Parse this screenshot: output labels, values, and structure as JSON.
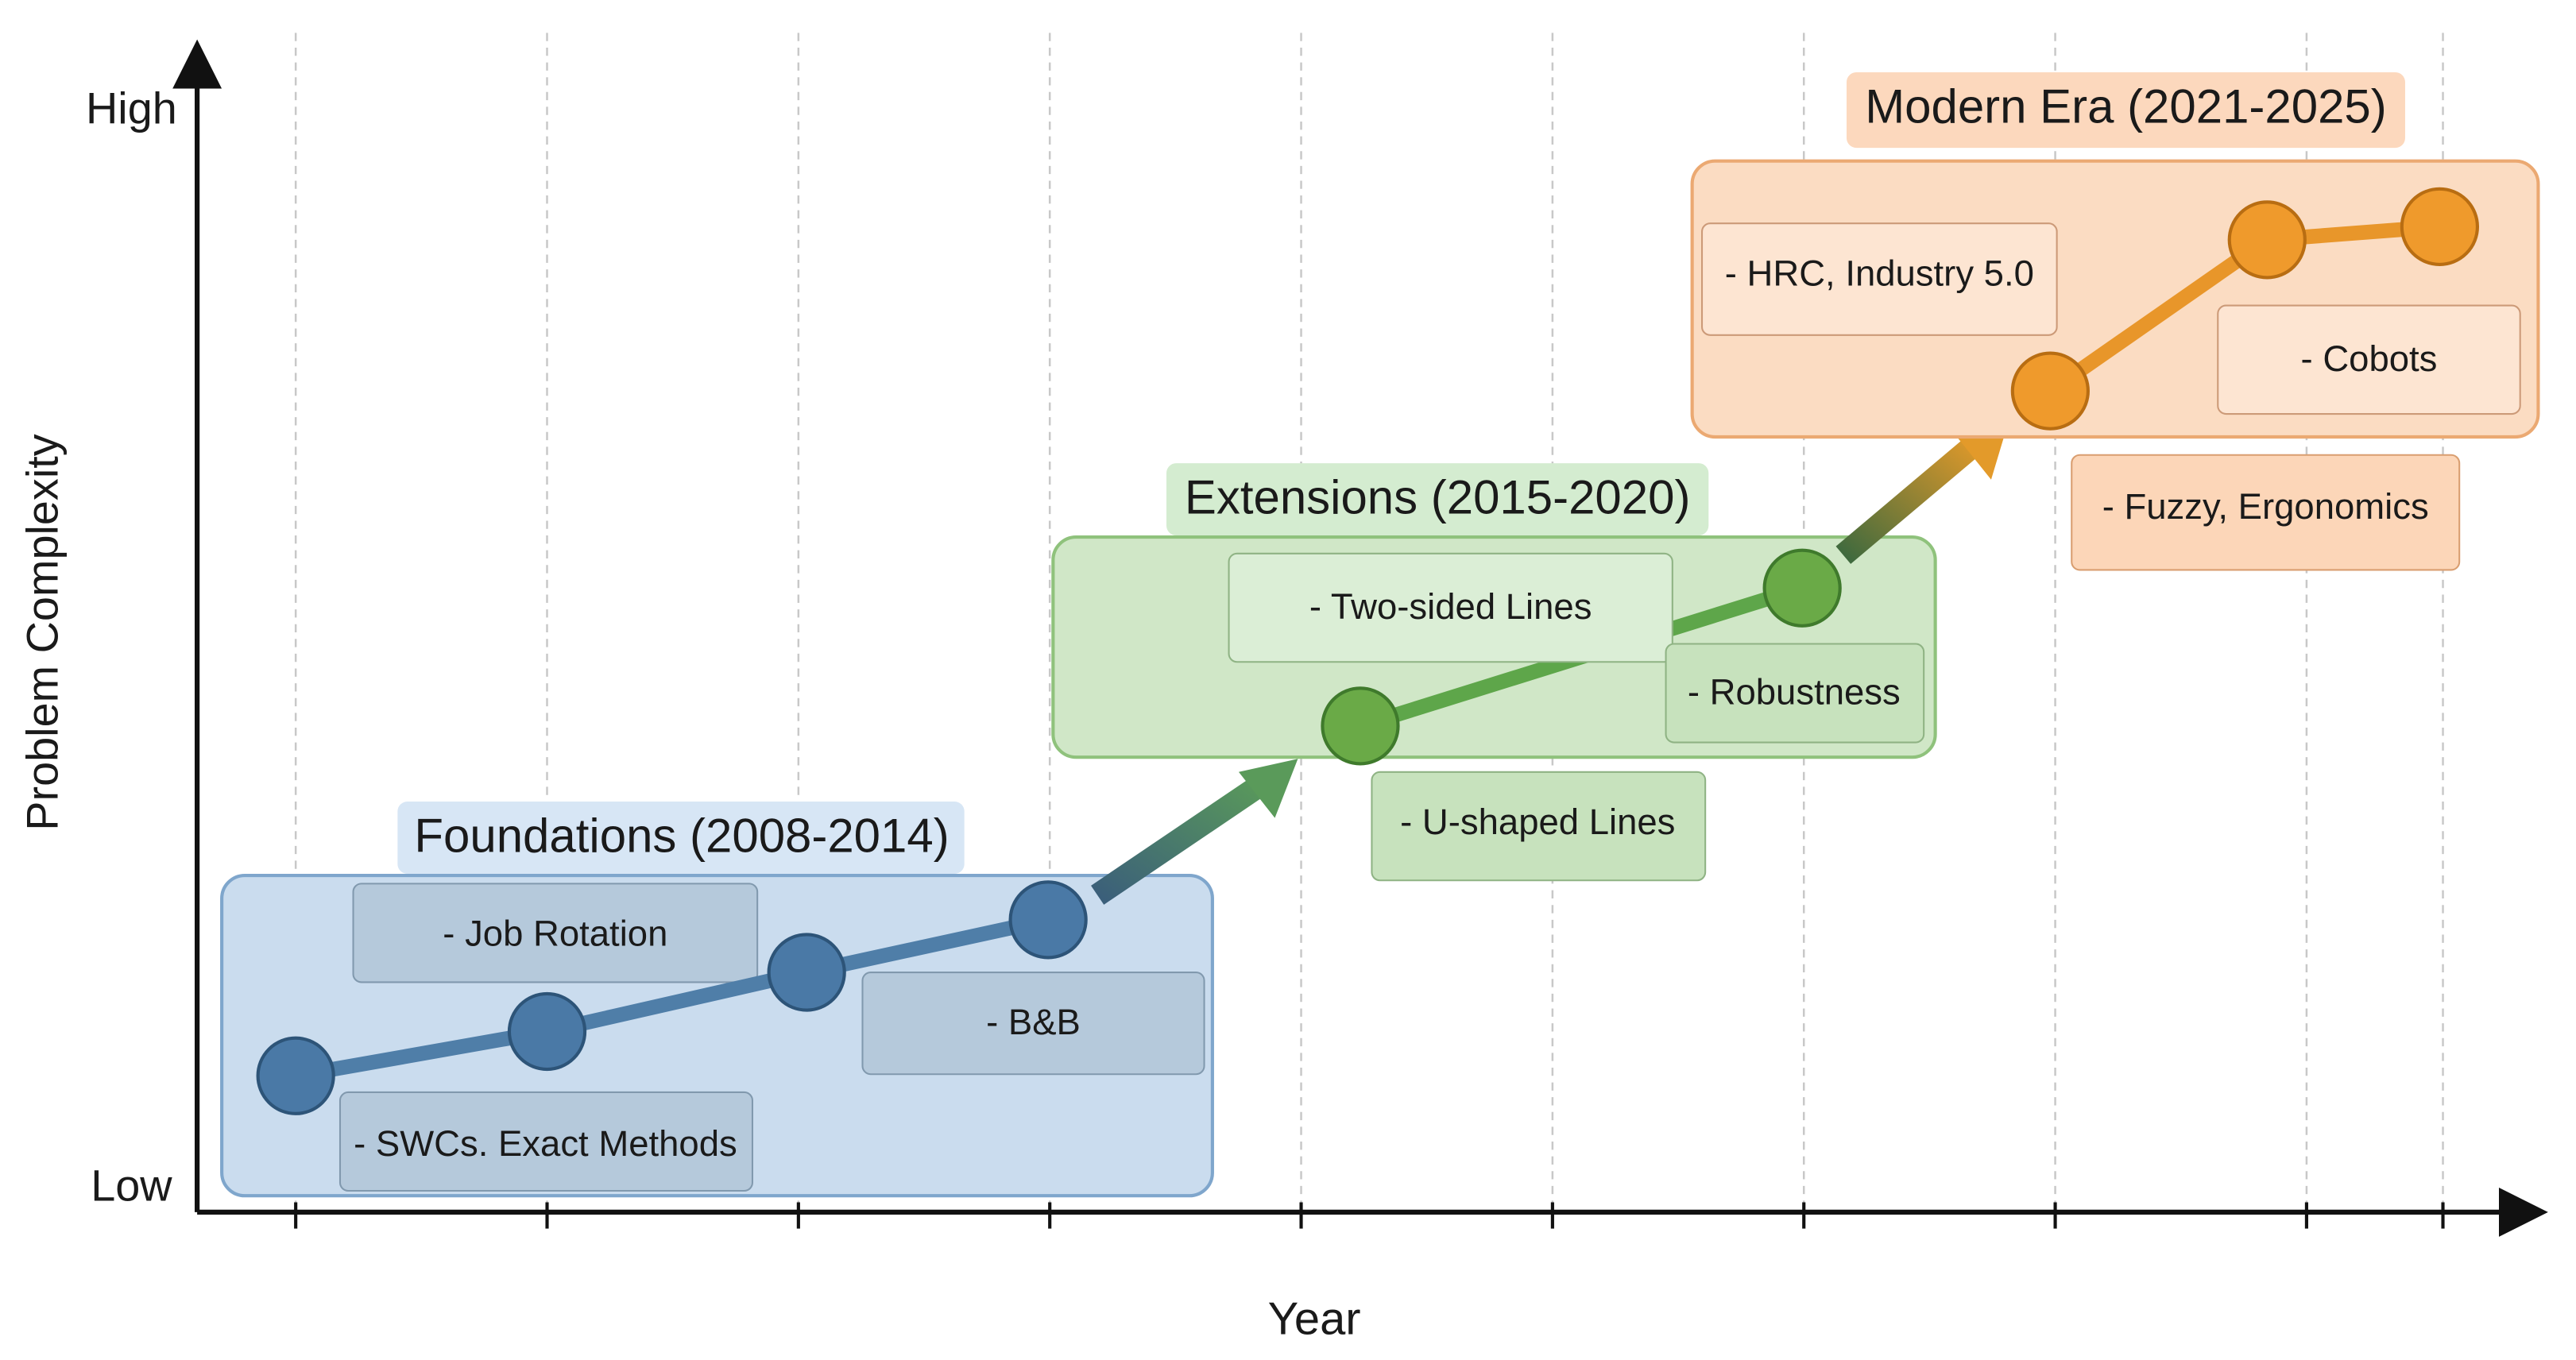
{
  "axes": {
    "y_label": "Problem Complexity",
    "y_high": "High",
    "y_low": "Low",
    "x_label": "Year"
  },
  "eras": [
    {
      "title": "Foundations (2008-2014)",
      "items": [
        "- Job Rotation",
        "- B&B",
        "- SWCs. Exact Methods"
      ]
    },
    {
      "title": "Extensions (2015-2020)",
      "items": [
        "- Two-sided Lines",
        "- Robustness",
        "- U-shaped Lines"
      ]
    },
    {
      "title": "Modern Era (2021-2025)",
      "items": [
        "- HRC, Industry 5.0",
        "- Cobots",
        "- Fuzzy, Ergonomics"
      ]
    }
  ]
}
